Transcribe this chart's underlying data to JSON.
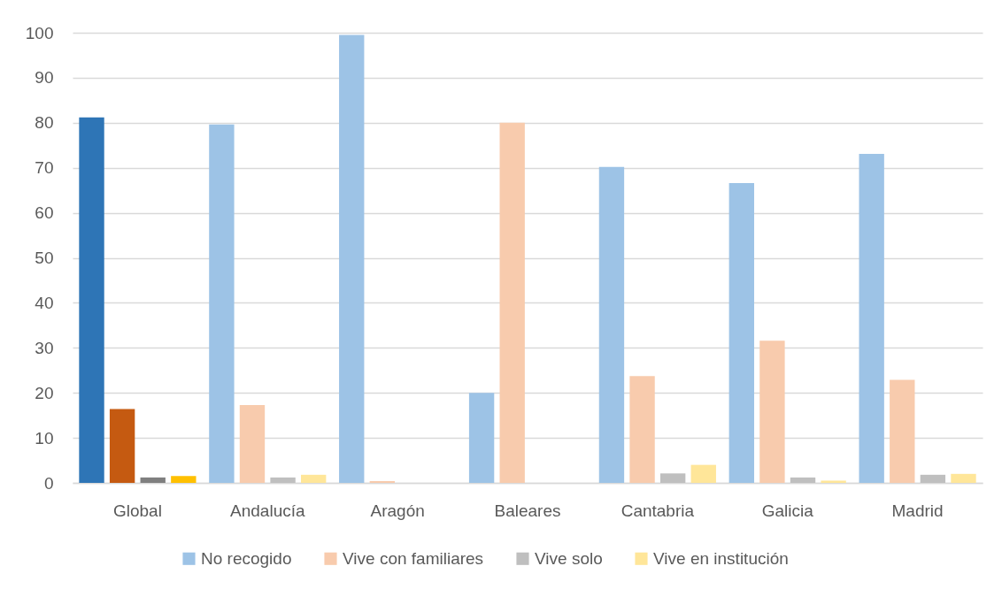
{
  "chart_data": {
    "type": "bar",
    "categories": [
      "Global",
      "Andalucía",
      "Aragón",
      "Baleares",
      "Cantabria",
      "Galicia",
      "Madrid"
    ],
    "series": [
      {
        "name": "No recogido",
        "color": "#9dc3e6",
        "colors": [
          "#2e75b6",
          "#9dc3e6",
          "#9dc3e6",
          "#9dc3e6",
          "#9dc3e6",
          "#9dc3e6",
          "#9dc3e6"
        ],
        "values": [
          81.2,
          79.6,
          99.5,
          20,
          70.2,
          66.6,
          73.1
        ]
      },
      {
        "name": "Vive con familiares",
        "color": "#f8cbad",
        "colors": [
          "#c55a11",
          "#f8cbad",
          "#f8cbad",
          "#f8cbad",
          "#f8cbad",
          "#f8cbad",
          "#f8cbad"
        ],
        "values": [
          16.4,
          17.3,
          0.4,
          80,
          23.7,
          31.6,
          22.9
        ]
      },
      {
        "name": "Vive solo",
        "color": "#bfbfbf",
        "colors": [
          "#7f7f7f",
          "#bfbfbf",
          "#bfbfbf",
          "#bfbfbf",
          "#bfbfbf",
          "#bfbfbf",
          "#bfbfbf"
        ],
        "values": [
          1.2,
          1.2,
          null,
          null,
          2.1,
          1.2,
          1.8
        ]
      },
      {
        "name": "Vive en institución",
        "color": "#ffe699",
        "colors": [
          "#ffc000",
          "#ffe699",
          "#ffe699",
          "#ffe699",
          "#ffe699",
          "#ffe699",
          "#ffe699"
        ],
        "values": [
          1.5,
          1.8,
          null,
          null,
          4.0,
          0.5,
          2.0
        ]
      }
    ],
    "ylim": [
      0,
      100
    ],
    "yticks": [
      0,
      10,
      20,
      30,
      40,
      50,
      60,
      70,
      80,
      90,
      100
    ],
    "grid": "y",
    "legend": "bottom"
  }
}
